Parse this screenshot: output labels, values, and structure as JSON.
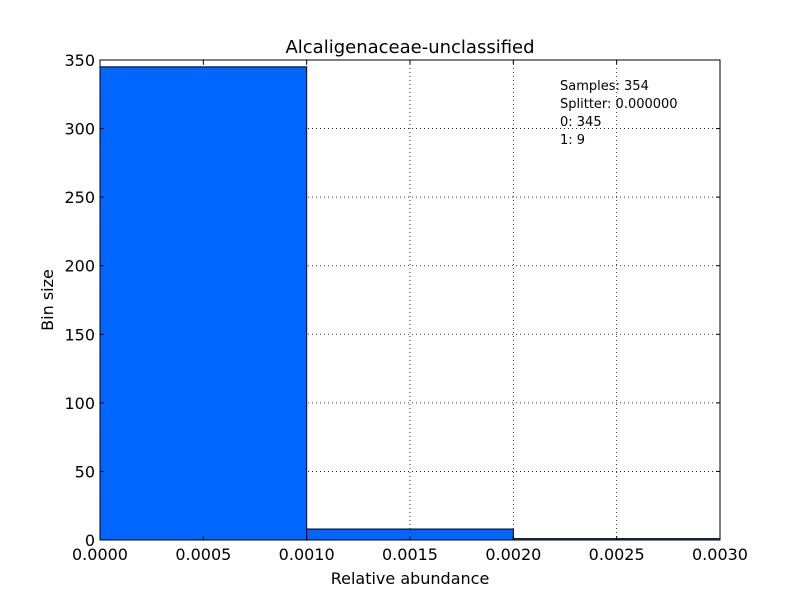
{
  "chart_data": {
    "type": "bar",
    "title": "Alcaligenaceae-unclassified",
    "xlabel": "Relative abundance",
    "ylabel": "Bin size",
    "xlim": [
      0,
      0.003
    ],
    "ylim": [
      0,
      350
    ],
    "bins": [
      {
        "start": 0.0,
        "end": 0.001,
        "value": 345
      },
      {
        "start": 0.001,
        "end": 0.002,
        "value": 8
      },
      {
        "start": 0.002,
        "end": 0.003,
        "value": 1
      }
    ],
    "x_ticks": [
      "0.0000",
      "0.0005",
      "0.0010",
      "0.0015",
      "0.0020",
      "0.0025",
      "0.0030"
    ],
    "x_tick_values": [
      0,
      0.0005,
      0.001,
      0.0015,
      0.002,
      0.0025,
      0.003
    ],
    "y_ticks": [
      "0",
      "50",
      "100",
      "150",
      "200",
      "250",
      "300",
      "350"
    ],
    "y_tick_values": [
      0,
      50,
      100,
      150,
      200,
      250,
      300,
      350
    ],
    "grid": true,
    "annotations": [
      "Samples: 354",
      "Splitter: 0.000000",
      "0: 345",
      "1: 9"
    ],
    "colors": {
      "bar": "#0066ff",
      "edge": "#000000"
    }
  }
}
